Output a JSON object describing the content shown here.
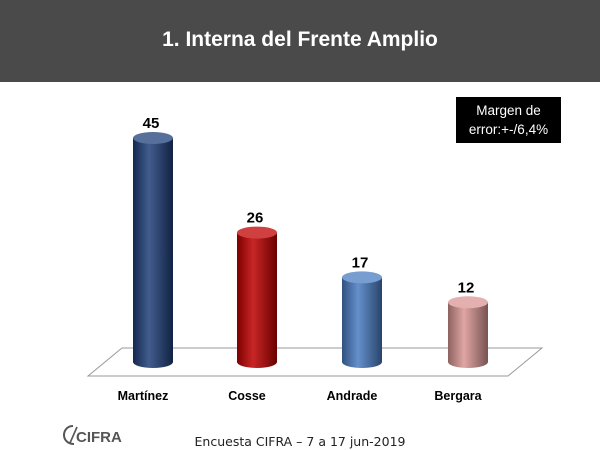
{
  "slide": {
    "title": "1.   Interna del Frente Amplio",
    "margin_note": {
      "line1": "Margen de",
      "line2": "error:+-/6,4%"
    },
    "footer": "Encuesta CIFRA – 7 a 17 jun-2019",
    "logo_text": "CIFRA"
  },
  "colors": {
    "header_bg": "#4a4a4a",
    "bar_colors": [
      "#1f3f7a",
      "#c00000",
      "#4a7cc2",
      "#d99694"
    ]
  },
  "chart_data": {
    "type": "bar",
    "categories": [
      "Martínez",
      "Cosse",
      "Andrade",
      "Bergara"
    ],
    "values": [
      45,
      26,
      17,
      12
    ],
    "data_labels": [
      "45",
      "26",
      "17",
      "12"
    ],
    "title": "",
    "xlabel": "",
    "ylabel": "",
    "ylim": [
      0,
      50
    ],
    "grid": false,
    "legend": "none",
    "style": "3d-cylinder"
  }
}
